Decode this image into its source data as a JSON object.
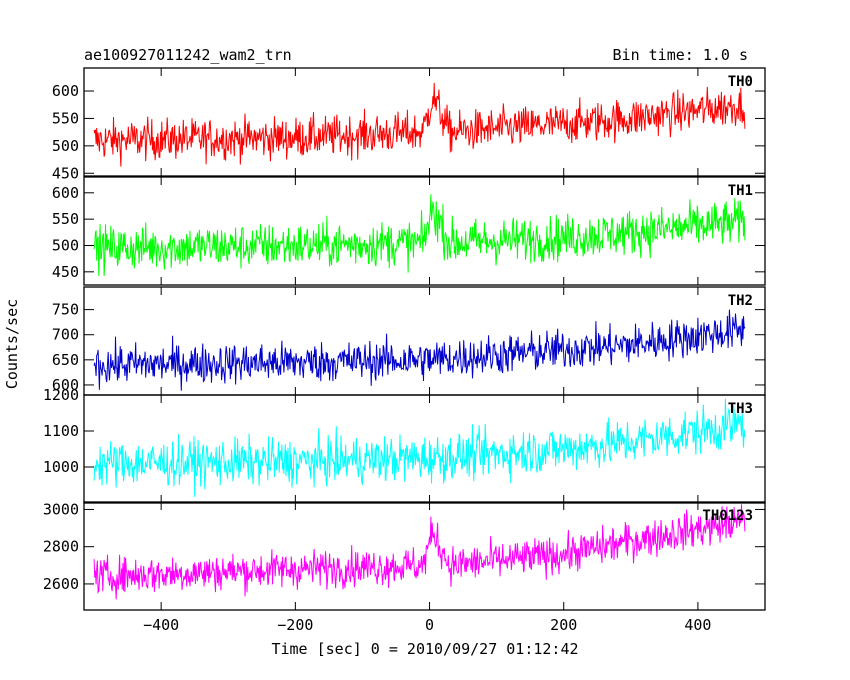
{
  "header": {
    "title": "ae100927011242_wam2_trn",
    "bin_time": "Bin time: 1.0 s"
  },
  "chart_data": {
    "type": "line",
    "xlabel": "Time [sec] 0 = 2010/09/27 01:12:42",
    "ylabel": "Counts/sec",
    "xlim": [
      -515,
      500
    ],
    "xticks": [
      -400,
      -200,
      0,
      200,
      400
    ],
    "x_range": [
      -500,
      470
    ],
    "bin_time_s": 1.0,
    "grid": false,
    "panels": [
      {
        "label": "TH0",
        "color": "#ff0000",
        "ylim": [
          445,
          642
        ],
        "yticks": [
          450,
          500,
          550,
          600
        ],
        "trend": [
          [
            -500,
            510
          ],
          [
            -200,
            515
          ],
          [
            -10,
            525
          ],
          [
            5,
            590
          ],
          [
            30,
            525
          ],
          [
            200,
            540
          ],
          [
            300,
            550
          ],
          [
            470,
            575
          ]
        ],
        "noise": 26
      },
      {
        "label": "TH1",
        "color": "#00ff00",
        "ylim": [
          425,
          630
        ],
        "yticks": [
          450,
          500,
          550,
          600
        ],
        "trend": [
          [
            -500,
            495
          ],
          [
            -200,
            500
          ],
          [
            -10,
            505
          ],
          [
            5,
            570
          ],
          [
            30,
            505
          ],
          [
            200,
            515
          ],
          [
            300,
            525
          ],
          [
            470,
            545
          ]
        ],
        "noise": 30
      },
      {
        "label": "TH2",
        "color": "#0000cc",
        "ylim": [
          580,
          795
        ],
        "yticks": [
          600,
          650,
          700,
          750
        ],
        "trend": [
          [
            -500,
            640
          ],
          [
            -200,
            645
          ],
          [
            0,
            650
          ],
          [
            200,
            670
          ],
          [
            300,
            680
          ],
          [
            470,
            710
          ]
        ],
        "noise": 28
      },
      {
        "label": "TH3",
        "color": "#00ffff",
        "ylim": [
          900,
          1200
        ],
        "yticks": [
          1000,
          1100,
          1200
        ],
        "trend": [
          [
            -500,
            1010
          ],
          [
            -200,
            1015
          ],
          [
            0,
            1025
          ],
          [
            200,
            1050
          ],
          [
            300,
            1070
          ],
          [
            470,
            1120
          ]
        ],
        "noise": 45
      },
      {
        "label": "TH0123",
        "color": "#ff00ff",
        "ylim": [
          2460,
          3040
        ],
        "yticks": [
          2600,
          2800,
          3000
        ],
        "trend": [
          [
            -500,
            2640
          ],
          [
            -200,
            2680
          ],
          [
            -10,
            2700
          ],
          [
            5,
            2880
          ],
          [
            30,
            2700
          ],
          [
            200,
            2760
          ],
          [
            300,
            2830
          ],
          [
            470,
            2940
          ]
        ],
        "noise": 70
      }
    ]
  }
}
